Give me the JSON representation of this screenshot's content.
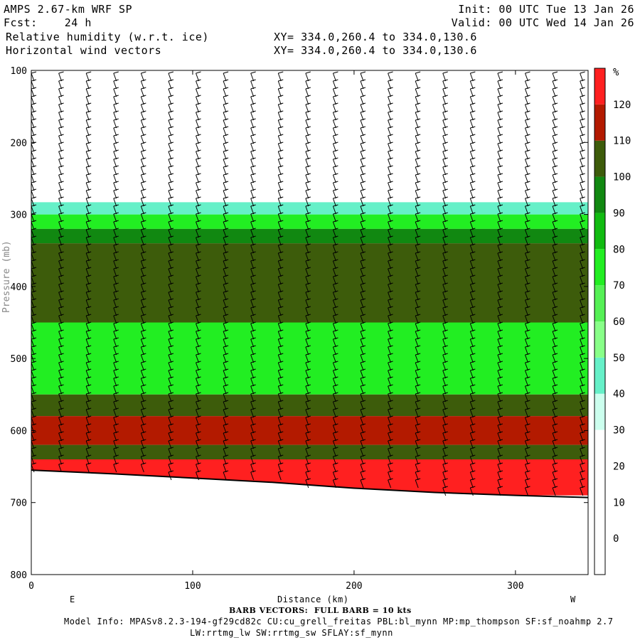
{
  "header": {
    "model": "AMPS 2.67-km WRF SP",
    "forecast": "Fcst:    24 h",
    "field1": "Relative humidity (w.r.t. ice)",
    "field2": "Horizontal wind vectors",
    "init": "Init: 00 UTC Tue 13 Jan 26",
    "valid": "Valid: 00 UTC Wed 14 Jan 26",
    "xy1": "XY= 334.0,260.4 to 334.0,130.6",
    "xy2": "XY= 334.0,260.4 to 334.0,130.6"
  },
  "footer": {
    "barb_note": "BARB VECTORS:  FULL BARB = 10 kts",
    "model_info": "Model Info: MPASv8.2.3-194-gf29cd82c CU:cu_grell_freitas PBL:bl_mynn MP:mp_thompson SF:sf_noahmp 2.7",
    "model_info2": "LW:rrtmg_lw SW:rrtmg_sw SFLAY:sf_mynn"
  },
  "chart_data": {
    "type": "heatmap",
    "title": "Relative humidity (w.r.t. ice)",
    "xlabel": "Distance (km)",
    "ylabel": "Pressure (mb)",
    "x_ticks": [
      0,
      100,
      200,
      300
    ],
    "xlim": [
      0,
      345
    ],
    "y_ticks": [
      100,
      200,
      300,
      400,
      500,
      600,
      700,
      800
    ],
    "ylim": [
      800,
      100
    ],
    "x_end_labels": {
      "left": "E",
      "right": "W"
    },
    "colorbar": {
      "unit": "%",
      "ticks": [
        0,
        10,
        20,
        30,
        40,
        50,
        60,
        70,
        80,
        90,
        100,
        110,
        120
      ],
      "bins": [
        {
          "from": 30,
          "to": 40,
          "color": "#ccffee"
        },
        {
          "from": 40,
          "to": 50,
          "color": "#66f0c8"
        },
        {
          "from": 50,
          "to": 60,
          "color": "#88ff88"
        },
        {
          "from": 60,
          "to": 70,
          "color": "#55f055"
        },
        {
          "from": 70,
          "to": 80,
          "color": "#22ee22"
        },
        {
          "from": 80,
          "to": 90,
          "color": "#11bb11"
        },
        {
          "from": 90,
          "to": 100,
          "color": "#118811"
        },
        {
          "from": 100,
          "to": 110,
          "color": "#3d5c0b"
        },
        {
          "from": 110,
          "to": 120,
          "color": "#b31a00"
        },
        {
          "from": 120,
          "to": 130,
          "color": "#ff2020"
        }
      ]
    },
    "surface_pressure": [
      [
        0,
        655
      ],
      [
        50,
        660
      ],
      [
        100,
        666
      ],
      [
        150,
        672
      ],
      [
        200,
        680
      ],
      [
        250,
        686
      ],
      [
        300,
        690
      ],
      [
        345,
        693
      ]
    ],
    "layers": [
      {
        "rh": 40,
        "p_top": 283,
        "p_bottom": 300
      },
      {
        "rh": 70,
        "p_top": 300,
        "p_bottom": 320
      },
      {
        "rh": 90,
        "p_top": 320,
        "p_bottom": 340
      },
      {
        "rh": 100,
        "p_top": 340,
        "p_bottom": 450
      },
      {
        "rh": 70,
        "p_top": 450,
        "p_bottom": 550
      },
      {
        "rh": 100,
        "p_top": 550,
        "p_bottom": 580
      },
      {
        "rh": 110,
        "p_top": 580,
        "p_bottom": 620
      },
      {
        "rh": 100,
        "p_top": 620,
        "p_bottom": 640
      },
      {
        "rh": 120,
        "p_top": 640,
        "p_bottom": 690
      }
    ]
  }
}
